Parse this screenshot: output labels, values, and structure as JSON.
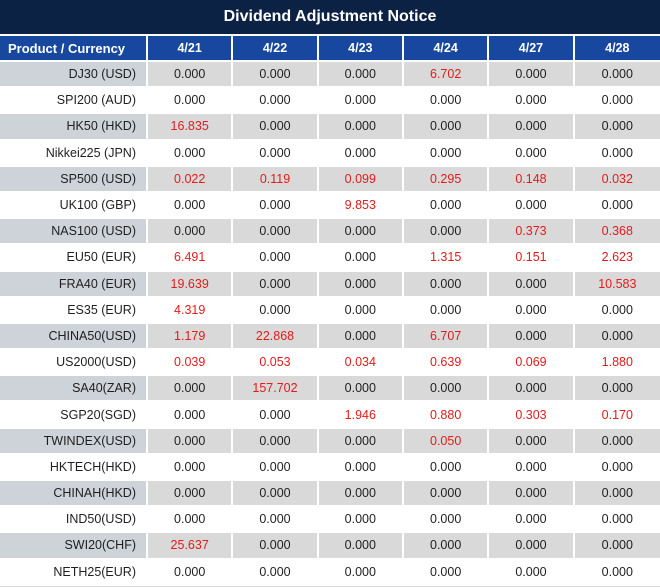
{
  "title": "Dividend Adjustment Notice",
  "colors": {
    "banner_bg": "#0c2244",
    "header_bg": "#17479e",
    "header_text": "#ffffff",
    "alt_row_label_bg": "#ced2d9",
    "alt_row_data_bg": "#d9d9d9",
    "row_bg": "#ffffff",
    "value_text": "#1f1f1f",
    "highlight_red": "#e31b1b"
  },
  "table": {
    "product_header": "Product / Currency",
    "date_headers": [
      "4/21",
      "4/22",
      "4/23",
      "4/24",
      "4/27",
      "4/28"
    ],
    "rows": [
      {
        "product": "DJ30 (USD)",
        "values": [
          "0.000",
          "0.000",
          "0.000",
          "6.702",
          "0.000",
          "0.000"
        ],
        "red": [
          3
        ]
      },
      {
        "product": "SPI200 (AUD)",
        "values": [
          "0.000",
          "0.000",
          "0.000",
          "0.000",
          "0.000",
          "0.000"
        ],
        "red": []
      },
      {
        "product": "HK50 (HKD)",
        "values": [
          "16.835",
          "0.000",
          "0.000",
          "0.000",
          "0.000",
          "0.000"
        ],
        "red": [
          0
        ]
      },
      {
        "product": "Nikkei225 (JPN)",
        "values": [
          "0.000",
          "0.000",
          "0.000",
          "0.000",
          "0.000",
          "0.000"
        ],
        "red": []
      },
      {
        "product": "SP500 (USD)",
        "values": [
          "0.022",
          "0.119",
          "0.099",
          "0.295",
          "0.148",
          "0.032"
        ],
        "red": [
          0,
          1,
          2,
          3,
          4,
          5
        ]
      },
      {
        "product": "UK100 (GBP)",
        "values": [
          "0.000",
          "0.000",
          "9.853",
          "0.000",
          "0.000",
          "0.000"
        ],
        "red": [
          2
        ]
      },
      {
        "product": "NAS100 (USD)",
        "values": [
          "0.000",
          "0.000",
          "0.000",
          "0.000",
          "0.373",
          "0.368"
        ],
        "red": [
          4,
          5
        ]
      },
      {
        "product": "EU50 (EUR)",
        "values": [
          "6.491",
          "0.000",
          "0.000",
          "1.315",
          "0.151",
          "2.623"
        ],
        "red": [
          0,
          3,
          4,
          5
        ]
      },
      {
        "product": "FRA40 (EUR)",
        "values": [
          "19.639",
          "0.000",
          "0.000",
          "0.000",
          "0.000",
          "10.583"
        ],
        "red": [
          0,
          5
        ]
      },
      {
        "product": "ES35 (EUR)",
        "values": [
          "4.319",
          "0.000",
          "0.000",
          "0.000",
          "0.000",
          "0.000"
        ],
        "red": [
          0
        ]
      },
      {
        "product": "CHINA50(USD)",
        "values": [
          "1.179",
          "22.868",
          "0.000",
          "6.707",
          "0.000",
          "0.000"
        ],
        "red": [
          0,
          1,
          3
        ]
      },
      {
        "product": "US2000(USD)",
        "values": [
          "0.039",
          "0.053",
          "0.034",
          "0.639",
          "0.069",
          "1.880"
        ],
        "red": [
          0,
          1,
          2,
          3,
          4,
          5
        ]
      },
      {
        "product": "SA40(ZAR)",
        "values": [
          "0.000",
          "157.702",
          "0.000",
          "0.000",
          "0.000",
          "0.000"
        ],
        "red": [
          1
        ]
      },
      {
        "product": "SGP20(SGD)",
        "values": [
          "0.000",
          "0.000",
          "1.946",
          "0.880",
          "0.303",
          "0.170"
        ],
        "red": [
          2,
          3,
          4,
          5
        ]
      },
      {
        "product": "TWINDEX(USD)",
        "values": [
          "0.000",
          "0.000",
          "0.000",
          "0.050",
          "0.000",
          "0.000"
        ],
        "red": [
          3
        ]
      },
      {
        "product": "HKTECH(HKD)",
        "values": [
          "0.000",
          "0.000",
          "0.000",
          "0.000",
          "0.000",
          "0.000"
        ],
        "red": []
      },
      {
        "product": "CHINAH(HKD)",
        "values": [
          "0.000",
          "0.000",
          "0.000",
          "0.000",
          "0.000",
          "0.000"
        ],
        "red": []
      },
      {
        "product": "IND50(USD)",
        "values": [
          "0.000",
          "0.000",
          "0.000",
          "0.000",
          "0.000",
          "0.000"
        ],
        "red": []
      },
      {
        "product": "SWI20(CHF)",
        "values": [
          "25.637",
          "0.000",
          "0.000",
          "0.000",
          "0.000",
          "0.000"
        ],
        "red": [
          0
        ]
      },
      {
        "product": "NETH25(EUR)",
        "values": [
          "0.000",
          "0.000",
          "0.000",
          "0.000",
          "0.000",
          "0.000"
        ],
        "red": []
      }
    ]
  }
}
